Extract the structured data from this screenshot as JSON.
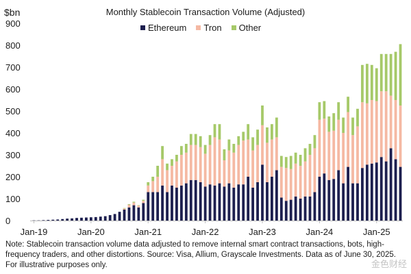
{
  "chart_data": {
    "type": "bar",
    "stacked": true,
    "title": "Monthly Stablecoin Transaction Volume (Adjusted)",
    "y_unit_label": "$bn",
    "ylim": [
      0,
      900
    ],
    "yticks": [
      "0",
      "100",
      "200",
      "300",
      "400",
      "500",
      "600",
      "700",
      "800",
      "900"
    ],
    "xtick_labels": [
      {
        "label": "Jan-19",
        "index": 0
      },
      {
        "label": "Jan-20",
        "index": 12
      },
      {
        "label": "Jan-21",
        "index": 24
      },
      {
        "label": "Jan-22",
        "index": 36
      },
      {
        "label": "Jan-23",
        "index": 48
      },
      {
        "label": "Jan-24",
        "index": 60
      },
      {
        "label": "Jan-25",
        "index": 72
      }
    ],
    "legend_position": "top",
    "series": [
      {
        "name": "Ethereum",
        "color": "#1d1f4f",
        "values": [
          1,
          1,
          2,
          3,
          4,
          5,
          7,
          9,
          10,
          12,
          13,
          14,
          15,
          16,
          18,
          20,
          25,
          30,
          40,
          50,
          60,
          70,
          60,
          80,
          130,
          130,
          130,
          160,
          130,
          160,
          150,
          160,
          170,
          185,
          185,
          175,
          155,
          165,
          160,
          170,
          155,
          170,
          150,
          165,
          165,
          200,
          150,
          175,
          255,
          175,
          200,
          230,
          105,
          90,
          95,
          110,
          100,
          110,
          110,
          130,
          200,
          215,
          185,
          190,
          230,
          170,
          245,
          170,
          170,
          240,
          255,
          260,
          265,
          290,
          270,
          330,
          280,
          245
        ]
      },
      {
        "name": "Tron",
        "color": "#f5b9a3",
        "values": [
          0,
          0,
          0,
          0,
          0,
          0,
          0,
          0,
          0,
          0,
          0,
          0,
          0,
          0,
          0,
          0,
          0,
          0,
          0,
          5,
          12,
          12,
          8,
          10,
          30,
          50,
          70,
          120,
          100,
          90,
          120,
          140,
          140,
          160,
          160,
          160,
          150,
          180,
          220,
          200,
          120,
          150,
          160,
          180,
          200,
          170,
          170,
          170,
          180,
          180,
          170,
          150,
          140,
          150,
          140,
          150,
          150,
          160,
          190,
          200,
          260,
          250,
          220,
          220,
          230,
          230,
          250,
          220,
          260,
          300,
          280,
          290,
          280,
          300,
          320,
          240,
          270,
          280
        ]
      },
      {
        "name": "Other",
        "color": "#a6c969",
        "values": [
          0,
          0,
          0,
          0,
          0,
          0,
          0,
          0,
          0,
          0,
          0,
          0,
          0,
          0,
          0,
          0,
          0,
          0,
          0,
          2,
          3,
          4,
          2,
          5,
          15,
          20,
          50,
          60,
          30,
          30,
          30,
          40,
          40,
          50,
          50,
          50,
          40,
          45,
          60,
          70,
          50,
          50,
          40,
          40,
          40,
          70,
          60,
          70,
          90,
          70,
          70,
          90,
          50,
          50,
          60,
          50,
          50,
          60,
          50,
          60,
          80,
          80,
          70,
          80,
          80,
          70,
          70,
          80,
          80,
          170,
          180,
          160,
          150,
          170,
          170,
          190,
          220,
          280
        ]
      }
    ]
  },
  "note": "Note: Stablecoin transaction volume data adjusted to remove internal smart contract transactions, bots, high-frequency traders, and other distortions. Source: Visa, Allium, Grayscale Investments. Data as of June 30, 2025. For illustrative purposes only.",
  "watermark": "金色财经"
}
